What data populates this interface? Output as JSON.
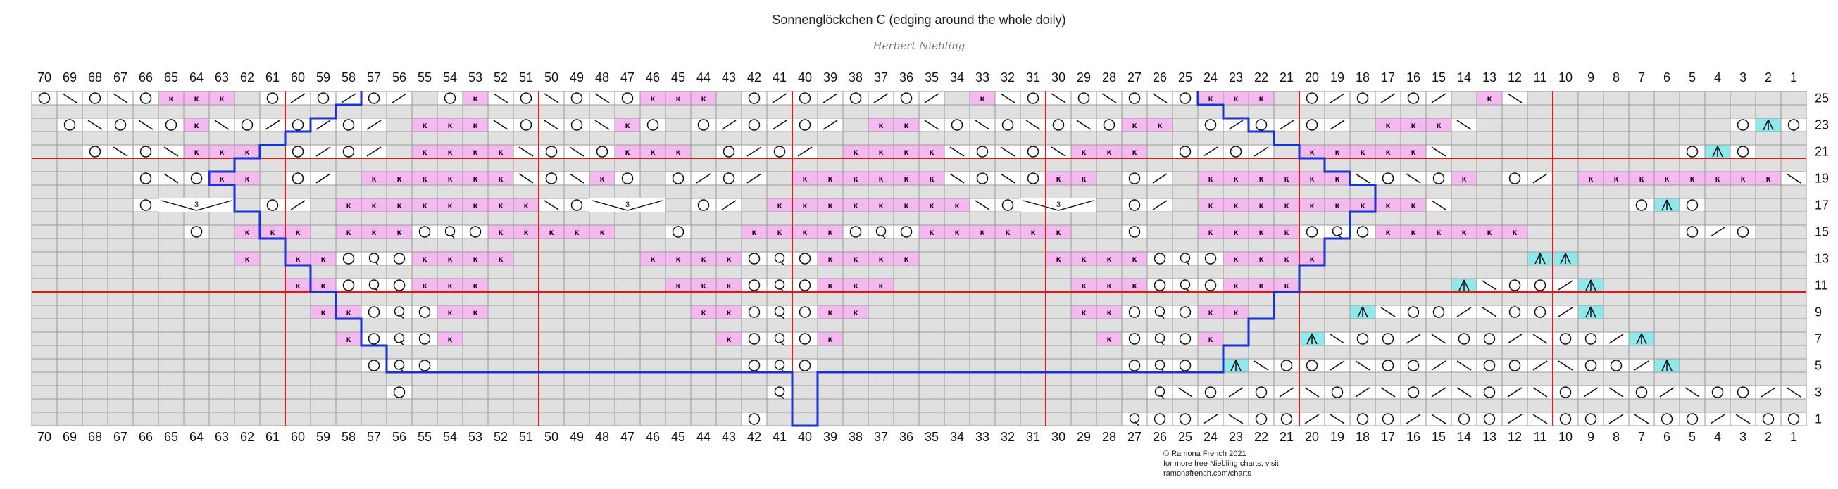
{
  "title": "Sonnenglöckchen C (edging around the whole doily)",
  "designer": "Herbert Niebling",
  "credits": {
    "copyright": "© Ramona French 2021",
    "line2": "for more free Niebling charts, visit",
    "line3": "ramonafrench.com/charts"
  },
  "colors": {
    "grid_line": "#9a9a9a",
    "no_stitch": "#e0e0e0",
    "knit_pink": "#f6b8f0",
    "cyan": "#8ee8ec",
    "red_line": "#e01818",
    "blue_line": "#1a33d6",
    "symbol": "#111111"
  },
  "columns_count": 70,
  "rows_count": 25,
  "column_labels": [
    "70",
    "69",
    "68",
    "67",
    "66",
    "65",
    "64",
    "63",
    "62",
    "61",
    "60",
    "59",
    "58",
    "57",
    "56",
    "55",
    "54",
    "53",
    "52",
    "51",
    "50",
    "49",
    "48",
    "47",
    "46",
    "45",
    "44",
    "43",
    "42",
    "41",
    "40",
    "39",
    "38",
    "37",
    "36",
    "35",
    "34",
    "33",
    "32",
    "31",
    "30",
    "29",
    "28",
    "27",
    "26",
    "25",
    "24",
    "23",
    "22",
    "21",
    "20",
    "19",
    "18",
    "17",
    "16",
    "15",
    "14",
    "13",
    "12",
    "11",
    "10",
    "9",
    "8",
    "7",
    "6",
    "5",
    "4",
    "3",
    "2",
    "1"
  ],
  "row_labels_right": [
    "25",
    "23",
    "21",
    "19",
    "17",
    "15",
    "13",
    "11",
    "9",
    "7",
    "5",
    "3",
    "1"
  ],
  "red_vertical_after_columns": [
    61,
    51,
    41,
    31,
    21,
    11
  ],
  "red_horizontal_row_boundaries": [
    20,
    10
  ],
  "legend_symbols": {
    "O": "yarn over",
    "\\": "slip slip knit",
    "/": "knit two together",
    "k": "knit (pink)",
    "Q": "twisted knit",
    "A": "double decrease (cyan)",
    "3": "3-stitch cluster"
  },
  "pattern_rows": [
    {
      "row": 25,
      "cells": "O\\O\\Okkk O/O/O/ Ok\\O\\O\\Okkk O/O/O/O/ k\\O\\O\\O\\Okkk O/O/O/ k\\           OAO             "
    },
    {
      "row": 23,
      "cells": " O\\O\\Ok\\O/O/O/ kkk\\O\\O\\kO O/O/O/ kk\\O\\O\\O\\Okk O/O/O/ kkk\\          OAO             "
    },
    {
      "row": 21,
      "cells": "  O\\O\\kkk O/O/ kkkk\\O\\Okkk O/O/ kkkk\\O\\O\\kkk O/O/ kkkkk\\         OAO             "
    },
    {
      "row": 19,
      "cells": "    O\\Okk O/ kkkkkk\\O\\kO O/O/ kkkkkk\\O\\Okk O/ kkkkkk\\O\\Ok O/ kkkkkkkk\\       OAO             "
    },
    {
      "row": 17,
      "cells": "    O 3  O/ kkkkkkkk\\O 3  O/ kkkkkkkk\\O 3  O/ kkkkkkkkk\\       OAO             "
    },
    {
      "row": 15,
      "cells": "      O kkk kkkOQOkkkkk  O  kkkkOQOkkkkkk  O  kkkkOQOkkkkkk      O/O             "
    },
    {
      "row": 13,
      "cells": "        k kkOQOkkkk     kkkkOQOkkkk     kkkkOQOkkkk        AA              "
    },
    {
      "row": 11,
      "cells": "          kkOQOkkk       kkkOQOkkk       kkkOQOkkk      A\\OO/A            "
    },
    {
      "row": 9,
      "cells": "           kkOQOkk        kkOQOkk        kkOQOkk    A\\OO/\\OO/A          "
    },
    {
      "row": 7,
      "cells": "            kOQOk          kOQOk          kOQOk   A\\OO/\\OO/\\OO/A        "
    },
    {
      "row": 5,
      "cells": "             OQO            OQO            OQO A\\OO/\\OO/\\OO/\\OO/A      "
    },
    {
      "row": 3,
      "cells": "              O              Q              Q\\O/O/\\O/\\O/\\O/\\O/\\O/\\OO/\\/ "
    },
    {
      "row": 1,
      "cells": "                            O              QOO/\\OO/\\OO/\\OO/\\OO/\\OO/\\OO/"
    }
  ]
}
